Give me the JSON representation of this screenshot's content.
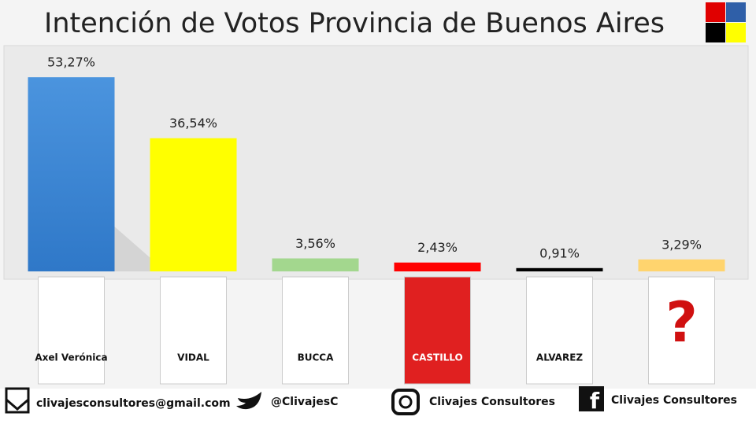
{
  "chart_data": {
    "type": "bar",
    "title": "Intención de Votos Provincia de Buenos Aires",
    "categories": [
      null,
      null,
      null,
      null,
      null,
      null
    ],
    "values": [
      53.27,
      36.54,
      3.56,
      2.43,
      0.91,
      3.29
    ],
    "value_labels": [
      "53,27%",
      "36,54%",
      "3,56%",
      "2,43%",
      "0,91%",
      "3,29%"
    ],
    "colors": [
      "#3b86d4",
      "#ffff00",
      "#a3d78e",
      "#ff0000",
      "#000000",
      "#ffd46e"
    ],
    "ylim": [
      0,
      60
    ],
    "grid": false
  },
  "ballots": [
    "Axel Verónica",
    "VIDAL",
    "BUCCA",
    "CASTILLO",
    "ALVAREZ",
    "?"
  ],
  "footer": {
    "email": "clivajesconsultores@gmail.com",
    "twitter": "@ClivajesC",
    "instagram": "Clivajes Consultores",
    "facebook": "Clivajes Consultores"
  }
}
